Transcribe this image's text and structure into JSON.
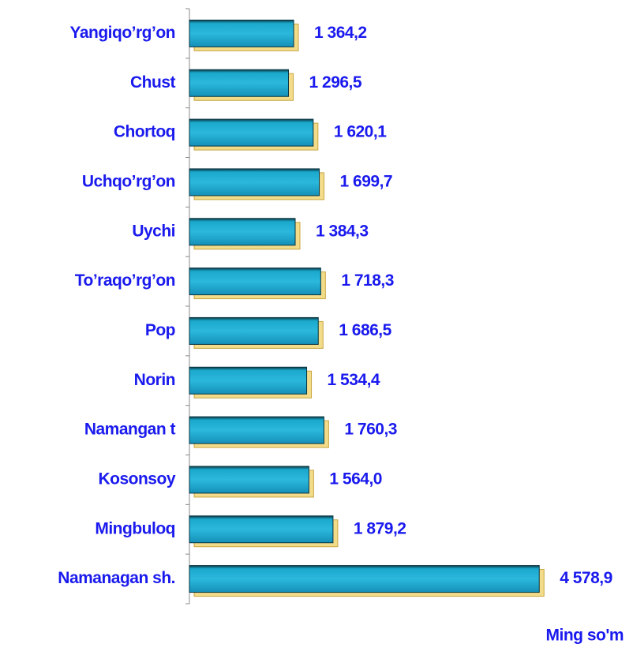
{
  "chart_data": {
    "type": "bar",
    "orientation": "horizontal",
    "categories": [
      "Yangiqo’rg’on",
      "Chust",
      "Chortoq",
      "Uchqo’rg’on",
      "Uychi",
      "To’raqo’rg’on",
      "Pop",
      "Norin",
      "Namangan t",
      "Kosonsoy",
      "Mingbuloq",
      "Namanagan sh."
    ],
    "values": [
      1364.2,
      1296.5,
      1620.1,
      1699.7,
      1384.3,
      1718.3,
      1686.5,
      1534.4,
      1760.3,
      1564.0,
      1879.2,
      4578.9
    ],
    "value_labels": [
      "1 364,2",
      "1 296,5",
      "1 620,1",
      "1 699,7",
      "1 384,3",
      "1 718,3",
      "1 686,5",
      "1 534,4",
      "1 760,3",
      "1 564,0",
      "1 879,2",
      "4 578,9"
    ],
    "color": "#1aa0c8",
    "xlim": [
      0,
      5000
    ],
    "x_axis_label": "Ming so'm"
  }
}
